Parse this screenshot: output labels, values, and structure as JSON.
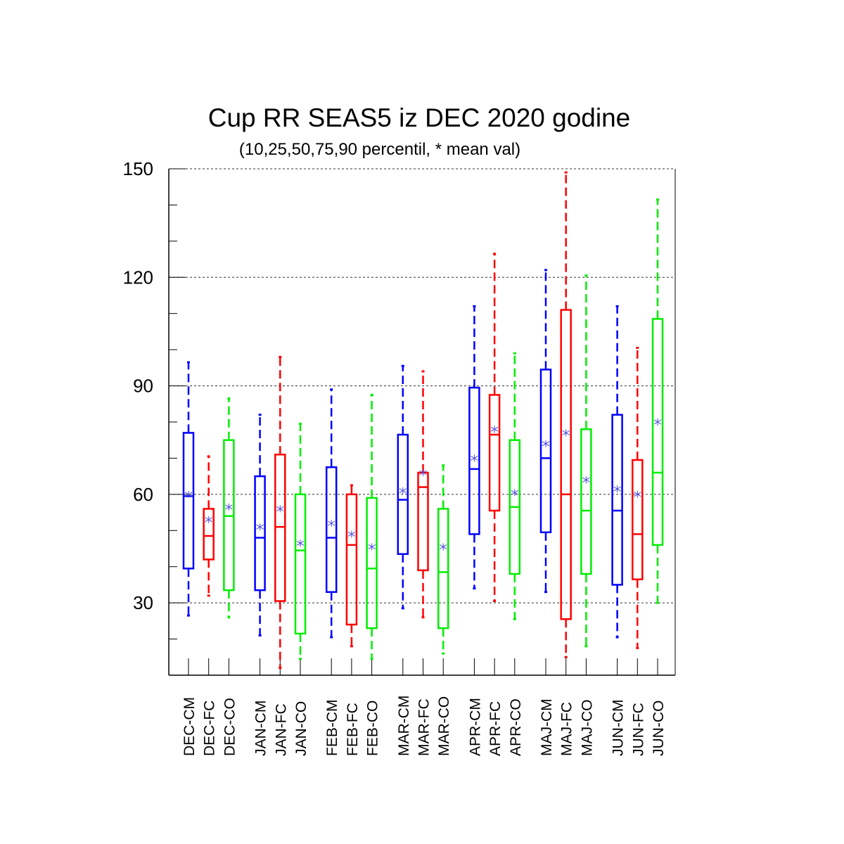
{
  "chart_data": {
    "type": "boxplot",
    "title": "Cup RR SEAS5 iz DEC 2020 godine",
    "subtitle": "(10,25,50,75,90 percentil, * mean val)",
    "xlabel": "",
    "ylabel": "",
    "ylim": [
      10,
      150
    ],
    "yticks": [
      30,
      60,
      90,
      120,
      150
    ],
    "yticks_minor": [
      20,
      40,
      50,
      70,
      80,
      100,
      110,
      130,
      140
    ],
    "grid": "horizontal dashed at major ticks",
    "colors": {
      "CM": "#0000ff",
      "FC": "#ff0000",
      "CO": "#00ee00",
      "mean_marker": "#4a4adc"
    },
    "groups": [
      "DEC",
      "JAN",
      "FEB",
      "MAR",
      "APR",
      "MAJ",
      "JUN"
    ],
    "boxes": [
      {
        "label": "DEC-CM",
        "kind": "CM",
        "p10": 26.5,
        "p25": 39.5,
        "p50": 59.5,
        "p75": 77,
        "p90": 96.5,
        "mean": 60
      },
      {
        "label": "DEC-FC",
        "kind": "FC",
        "p10": 32,
        "p25": 42,
        "p50": 48.5,
        "p75": 56,
        "p90": 70.5,
        "mean": 53
      },
      {
        "label": "DEC-CO",
        "kind": "CO",
        "p10": 26,
        "p25": 33.5,
        "p50": 54,
        "p75": 75,
        "p90": 86.5,
        "mean": 56.5
      },
      {
        "label": "JAN-CM",
        "kind": "CM",
        "p10": 21,
        "p25": 33.5,
        "p50": 48,
        "p75": 65,
        "p90": 82,
        "mean": 51
      },
      {
        "label": "JAN-FC",
        "kind": "FC",
        "p10": 12,
        "p25": 30.5,
        "p50": 51,
        "p75": 71,
        "p90": 98,
        "mean": 56
      },
      {
        "label": "JAN-CO",
        "kind": "CO",
        "p10": 14.5,
        "p25": 21.5,
        "p50": 44.5,
        "p75": 60,
        "p90": 79.5,
        "mean": 46.5
      },
      {
        "label": "FEB-CM",
        "kind": "CM",
        "p10": 20.5,
        "p25": 33,
        "p50": 48,
        "p75": 67.5,
        "p90": 89,
        "mean": 52
      },
      {
        "label": "FEB-FC",
        "kind": "FC",
        "p10": 18,
        "p25": 24,
        "p50": 46,
        "p75": 60,
        "p90": 62.5,
        "mean": 49
      },
      {
        "label": "FEB-CO",
        "kind": "CO",
        "p10": 14.5,
        "p25": 23,
        "p50": 39.5,
        "p75": 59,
        "p90": 87.5,
        "mean": 45.5
      },
      {
        "label": "MAR-CM",
        "kind": "CM",
        "p10": 28.5,
        "p25": 43.5,
        "p50": 58.5,
        "p75": 76.5,
        "p90": 95.5,
        "mean": 61
      },
      {
        "label": "MAR-FC",
        "kind": "FC",
        "p10": 26,
        "p25": 39,
        "p50": 62,
        "p75": 66,
        "p90": 94,
        "mean": 66
      },
      {
        "label": "MAR-CO",
        "kind": "CO",
        "p10": 16,
        "p25": 23,
        "p50": 38.5,
        "p75": 56,
        "p90": 68,
        "mean": 45.5
      },
      {
        "label": "APR-CM",
        "kind": "CM",
        "p10": 34,
        "p25": 49,
        "p50": 67,
        "p75": 89.5,
        "p90": 112,
        "mean": 70
      },
      {
        "label": "APR-FC",
        "kind": "FC",
        "p10": 30.5,
        "p25": 55.5,
        "p50": 76.5,
        "p75": 87.5,
        "p90": 126.5,
        "mean": 78
      },
      {
        "label": "APR-CO",
        "kind": "CO",
        "p10": 25.5,
        "p25": 38,
        "p50": 56.5,
        "p75": 75,
        "p90": 99,
        "mean": 60.5
      },
      {
        "label": "MAJ-CM",
        "kind": "CM",
        "p10": 33,
        "p25": 49.5,
        "p50": 70,
        "p75": 94.5,
        "p90": 122,
        "mean": 74
      },
      {
        "label": "MAJ-FC",
        "kind": "FC",
        "p10": 15,
        "p25": 25.5,
        "p50": 60,
        "p75": 111,
        "p90": 149,
        "mean": 77
      },
      {
        "label": "MAJ-CO",
        "kind": "CO",
        "p10": 18,
        "p25": 38,
        "p50": 55.5,
        "p75": 78,
        "p90": 120.5,
        "mean": 64
      },
      {
        "label": "JUN-CM",
        "kind": "CM",
        "p10": 20.5,
        "p25": 35,
        "p50": 55.5,
        "p75": 82,
        "p90": 112,
        "mean": 61.5
      },
      {
        "label": "JUN-FC",
        "kind": "FC",
        "p10": 17.5,
        "p25": 36.5,
        "p50": 49,
        "p75": 69.5,
        "p90": 100.5,
        "mean": 60
      },
      {
        "label": "JUN-CO",
        "kind": "CO",
        "p10": 30,
        "p25": 46,
        "p50": 66,
        "p75": 108.5,
        "p90": 141.5,
        "mean": 80
      }
    ]
  }
}
